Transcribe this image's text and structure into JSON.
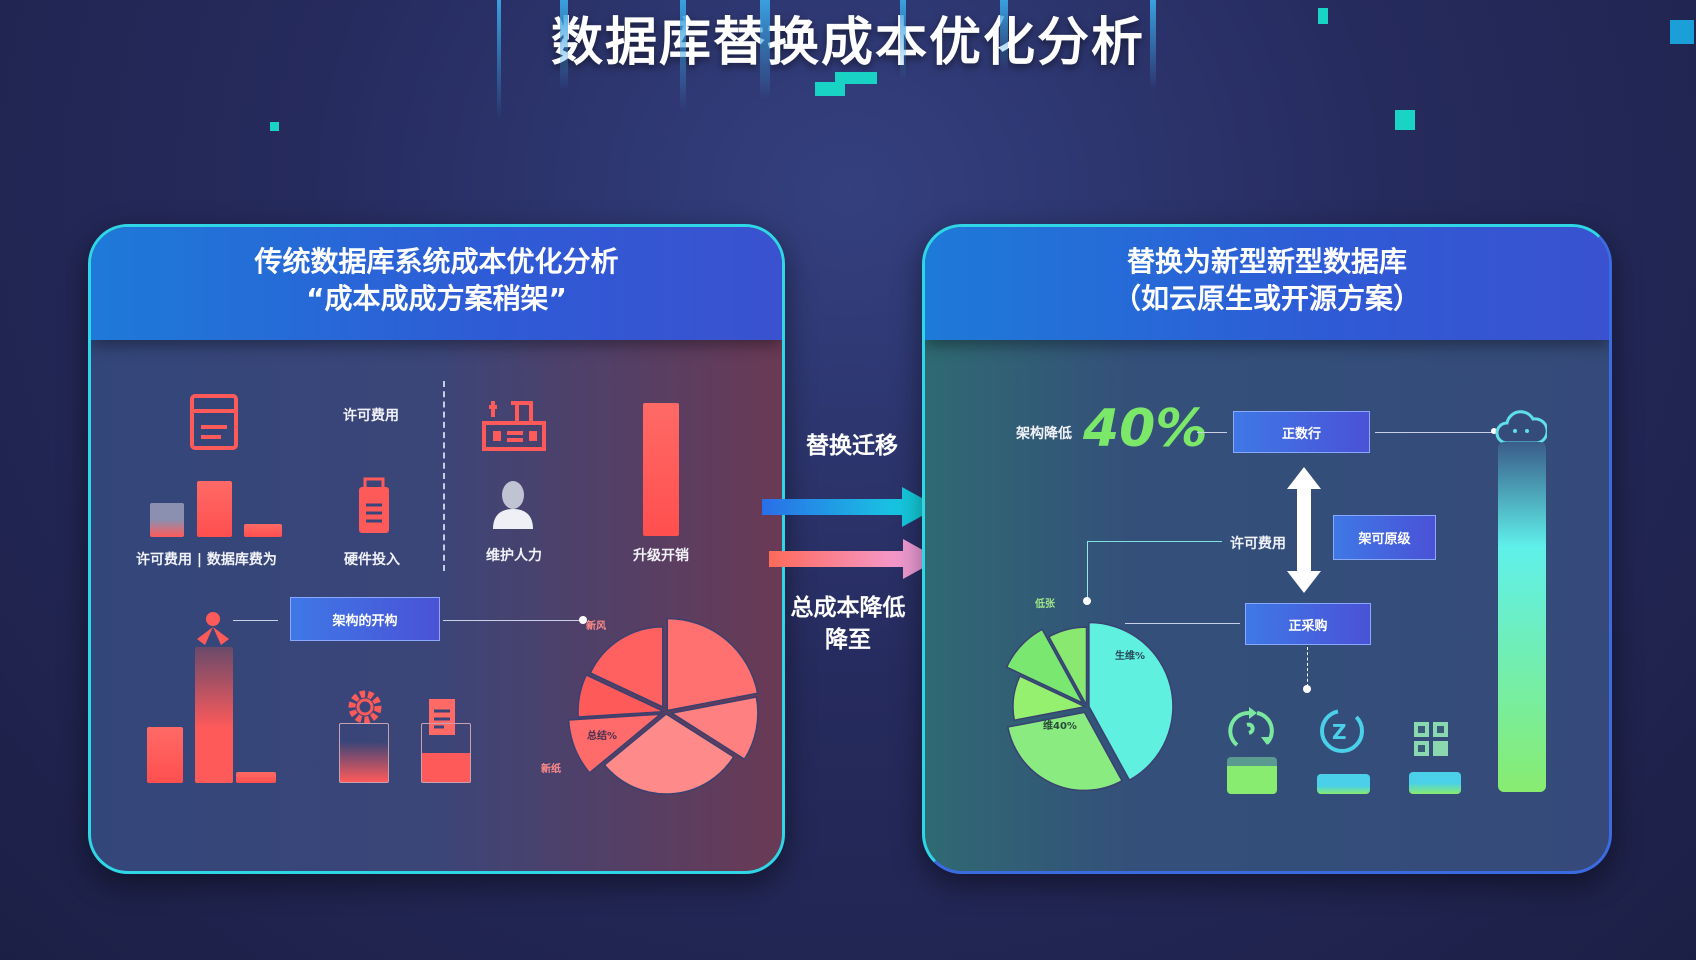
{
  "title": "数据库替换成本优化分析",
  "left_panel": {
    "title_line1": "传统数据库系统成本优化分析",
    "title_line2": "“成本成成方案稍架”",
    "top_label": "许可费用",
    "labels": [
      "许可费用 | 数据库费为",
      "硬件投入",
      "维护人力",
      "升级开销"
    ],
    "flow_box": "架构的开构",
    "pie_labels": [
      "新风",
      "总结%",
      "新纸"
    ],
    "pie_slices": [
      0.22,
      0.12,
      0.3,
      0.1,
      0.08,
      0.18
    ],
    "accent": "#ff5a5a"
  },
  "middle": {
    "top_label": "替换迁移",
    "bottom_label_line1": "总成本降低",
    "bottom_label_line2": "降至"
  },
  "right_panel": {
    "title_line1": "替换为新型新型数据库",
    "title_line2": "（如云原生或开源方案）",
    "reduction_label": "架构降低",
    "reduction_value": "40%",
    "box_top": "正数行",
    "license_label": "许可费用",
    "box_mid": "架可原级",
    "box_bottom": "正采购",
    "pie_labels": [
      "低张",
      "生维%",
      "维40%"
    ],
    "pie_slices": [
      0.42,
      0.3,
      0.1,
      0.1,
      0.08
    ],
    "accent": "#7be86a"
  }
}
